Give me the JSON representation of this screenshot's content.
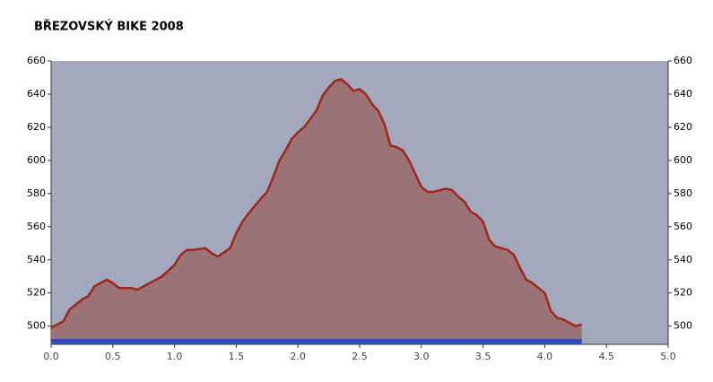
{
  "chart_data": {
    "type": "area",
    "title": "BŘEZOVSKÝ BIKE 2008",
    "x": [
      0.0,
      0.1,
      0.15,
      0.25,
      0.3,
      0.35,
      0.45,
      0.5,
      0.55,
      0.65,
      0.7,
      0.8,
      0.9,
      1.0,
      1.05,
      1.1,
      1.15,
      1.25,
      1.3,
      1.35,
      1.45,
      1.5,
      1.55,
      1.6,
      1.7,
      1.75,
      1.8,
      1.85,
      1.9,
      1.95,
      2.0,
      2.05,
      2.1,
      2.15,
      2.2,
      2.25,
      2.3,
      2.35,
      2.4,
      2.45,
      2.5,
      2.55,
      2.6,
      2.65,
      2.7,
      2.75,
      2.8,
      2.85,
      2.9,
      2.95,
      3.0,
      3.05,
      3.1,
      3.2,
      3.25,
      3.3,
      3.35,
      3.4,
      3.45,
      3.5,
      3.55,
      3.6,
      3.65,
      3.7,
      3.75,
      3.8,
      3.85,
      3.9,
      3.95,
      4.0,
      4.05,
      4.1,
      4.15,
      4.2,
      4.25,
      4.3
    ],
    "values": [
      499,
      503,
      510,
      516,
      518,
      524,
      528,
      526,
      523,
      523,
      522,
      526,
      530,
      537,
      543,
      546,
      546,
      547,
      544,
      542,
      547,
      556,
      563,
      568,
      577,
      581,
      590,
      600,
      606,
      613,
      617,
      620,
      625,
      630,
      639,
      644,
      648,
      649,
      646,
      642,
      643,
      640,
      634,
      630,
      622,
      609,
      608,
      606,
      600,
      592,
      584,
      581,
      581,
      583,
      582,
      578,
      575,
      569,
      567,
      563,
      552,
      548,
      547,
      546,
      543,
      535,
      528,
      526,
      523,
      520,
      509,
      505,
      504,
      502,
      500,
      501
    ],
    "color": "#9b7276",
    "line_color": "#a0261c",
    "background": "#a4a8bd",
    "track_color": "#2f4fb5",
    "xlim": [
      0,
      5
    ],
    "xticks": [
      {
        "value": 0,
        "label": "0.0"
      },
      0.5,
      {
        "value": 1,
        "label": "1.0"
      },
      1.5,
      {
        "value": 2,
        "label": "2.0"
      },
      2.5,
      {
        "value": 3,
        "label": "3.0"
      },
      3.5,
      {
        "value": 4,
        "label": "4.0"
      },
      4.5,
      {
        "value": 5,
        "label": "5.0"
      }
    ],
    "ylim": [
      489,
      660
    ],
    "yticks": [
      500,
      520,
      540,
      560,
      580,
      600,
      620,
      640,
      660
    ]
  }
}
